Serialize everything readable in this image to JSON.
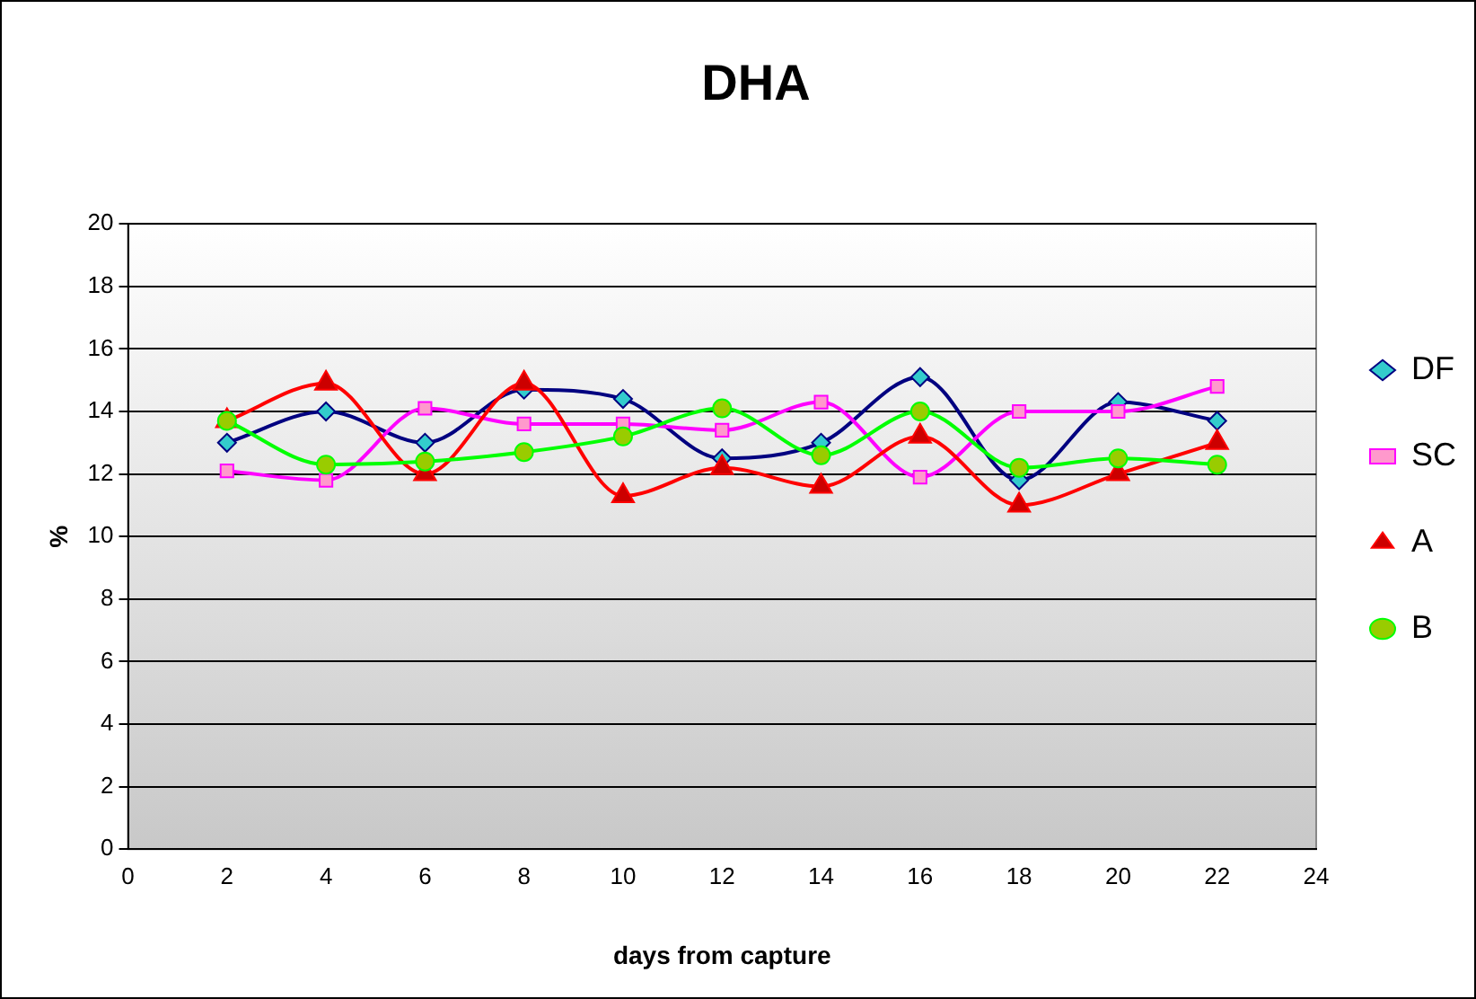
{
  "chart_data": {
    "type": "line",
    "title": "DHA",
    "xlabel": "days from capture",
    "ylabel": "%",
    "x": [
      2,
      4,
      6,
      8,
      10,
      12,
      14,
      16,
      18,
      20,
      22
    ],
    "xlim": [
      0,
      24
    ],
    "xticks": [
      0,
      2,
      4,
      6,
      8,
      10,
      12,
      14,
      16,
      18,
      20,
      22,
      24
    ],
    "ylim": [
      0,
      20
    ],
    "yticks": [
      0,
      2,
      4,
      6,
      8,
      10,
      12,
      14,
      16,
      18,
      20
    ],
    "grid": "y",
    "legend": "right",
    "series": [
      {
        "name": "DF",
        "color": "#000080",
        "marker": "diamond",
        "values": [
          13.0,
          14.0,
          13.0,
          14.7,
          14.4,
          12.5,
          13.0,
          15.1,
          11.8,
          14.3,
          13.7
        ]
      },
      {
        "name": "SC",
        "color": "#ff00ff",
        "marker": "square",
        "values": [
          12.1,
          11.8,
          14.1,
          13.6,
          13.6,
          13.4,
          14.3,
          11.9,
          14.0,
          14.0,
          14.8
        ]
      },
      {
        "name": "A",
        "color": "#ff0000",
        "marker": "triangle",
        "values": [
          13.7,
          14.9,
          12.0,
          14.9,
          11.3,
          12.2,
          11.6,
          13.2,
          11.0,
          12.0,
          13.0
        ]
      },
      {
        "name": "B",
        "color": "#00ff00",
        "marker": "circle",
        "values": [
          13.7,
          12.3,
          12.4,
          12.7,
          13.2,
          14.1,
          12.6,
          14.0,
          12.2,
          12.5,
          12.3
        ]
      }
    ]
  }
}
